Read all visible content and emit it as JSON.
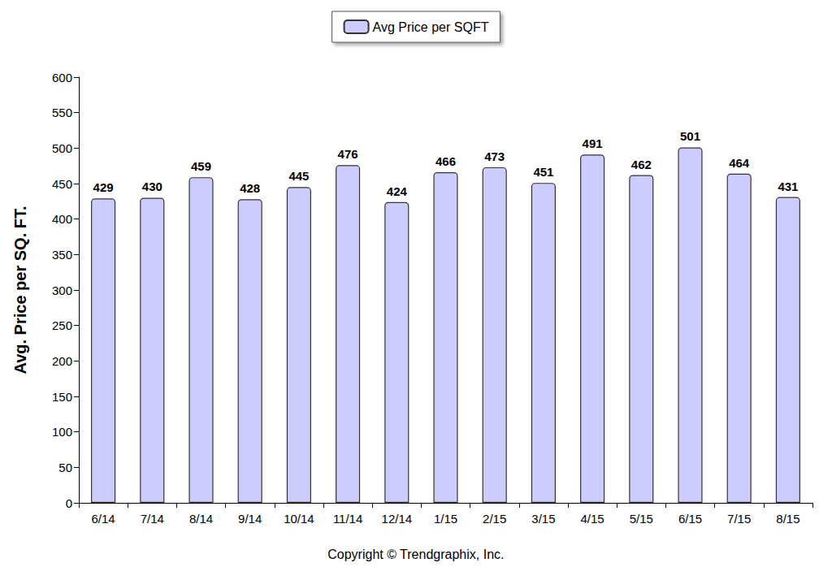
{
  "chart_data": {
    "type": "bar",
    "y_label": "Avg. Price per SQ. FT.",
    "annotations": [
      "Copyright © Trendgraphix, Inc."
    ],
    "categories": [
      "6/14",
      "7/14",
      "8/14",
      "9/14",
      "10/14",
      "11/14",
      "12/14",
      "1/15",
      "2/15",
      "3/15",
      "4/15",
      "5/15",
      "6/15",
      "7/15",
      "8/15"
    ],
    "series": [
      {
        "name": "Avg Price per SQFT",
        "color": "#ccccff",
        "values": [
          429,
          430,
          459,
          428,
          445,
          476,
          424,
          466,
          473,
          451,
          491,
          462,
          501,
          464,
          431
        ]
      }
    ],
    "ylim": [
      0,
      600
    ],
    "yticks": [
      0,
      50,
      100,
      150,
      200,
      250,
      300,
      350,
      400,
      450,
      500,
      550,
      600
    ],
    "grid": false,
    "legend": "top",
    "data_labels": true
  }
}
